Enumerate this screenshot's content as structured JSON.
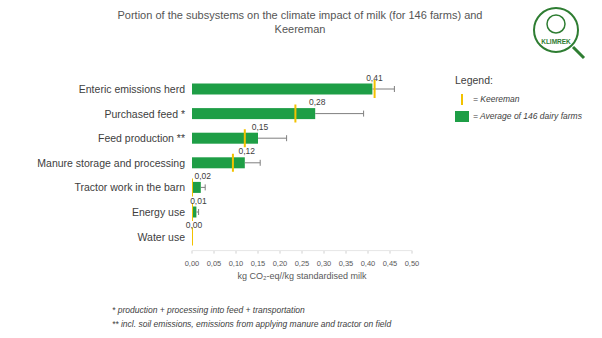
{
  "chart_data": {
    "type": "bar",
    "orientation": "horizontal",
    "title": [
      "Portion of the subsystems on the climate impact of milk (for 146 farms) and",
      "Keereman"
    ],
    "x_label": "kg CO₂-eq//kg standardised milk",
    "categories": [
      "Enteric emissions herd",
      "Purchased feed *",
      "Feed production **",
      "Manure storage and processing",
      "Tractor work in the barn",
      "Energy use",
      "Water use"
    ],
    "series": [
      {
        "name": "= Average of 146 dairy farms",
        "color": "#1e9e46",
        "type": "bar",
        "values": [
          0.41,
          0.28,
          0.15,
          0.12,
          0.02,
          0.01,
          0.0
        ],
        "value_labels": [
          "0,41",
          "0,28",
          "0,15",
          "0,12",
          "0,02",
          "0,01",
          "0,00"
        ],
        "errors": [
          0.05,
          0.11,
          0.065,
          0.035,
          0.01,
          0.005,
          0.0
        ]
      },
      {
        "name": "= Keereman",
        "color": "#f2c200",
        "type": "marker",
        "values": [
          0.415,
          0.235,
          0.12,
          0.093,
          0.0,
          0.0,
          0.0
        ]
      }
    ],
    "xlim": [
      0,
      0.5
    ],
    "xticks": [
      {
        "value": 0,
        "label": "0,00"
      },
      {
        "value": 0.05,
        "label": "0,05"
      },
      {
        "value": 0.1,
        "label": "0,10"
      },
      {
        "value": 0.15,
        "label": "0,15"
      },
      {
        "value": 0.2,
        "label": "0,20"
      },
      {
        "value": 0.25,
        "label": "0,25"
      },
      {
        "value": 0.3,
        "label": "0,30"
      },
      {
        "value": 0.35,
        "label": "0,35"
      },
      {
        "value": 0.4,
        "label": "0,40"
      },
      {
        "value": 0.45,
        "label": "0,45"
      },
      {
        "value": 0.5,
        "label": "0,50"
      }
    ],
    "grid": false,
    "data_labels": true,
    "legend": "right",
    "legend_title": "Legend:",
    "footnotes": [
      "* production + processing into feed + transportation",
      "** incl. soil emissions, emissions from applying manure and tractor on field"
    ],
    "logo_text": "KLIMREK"
  }
}
